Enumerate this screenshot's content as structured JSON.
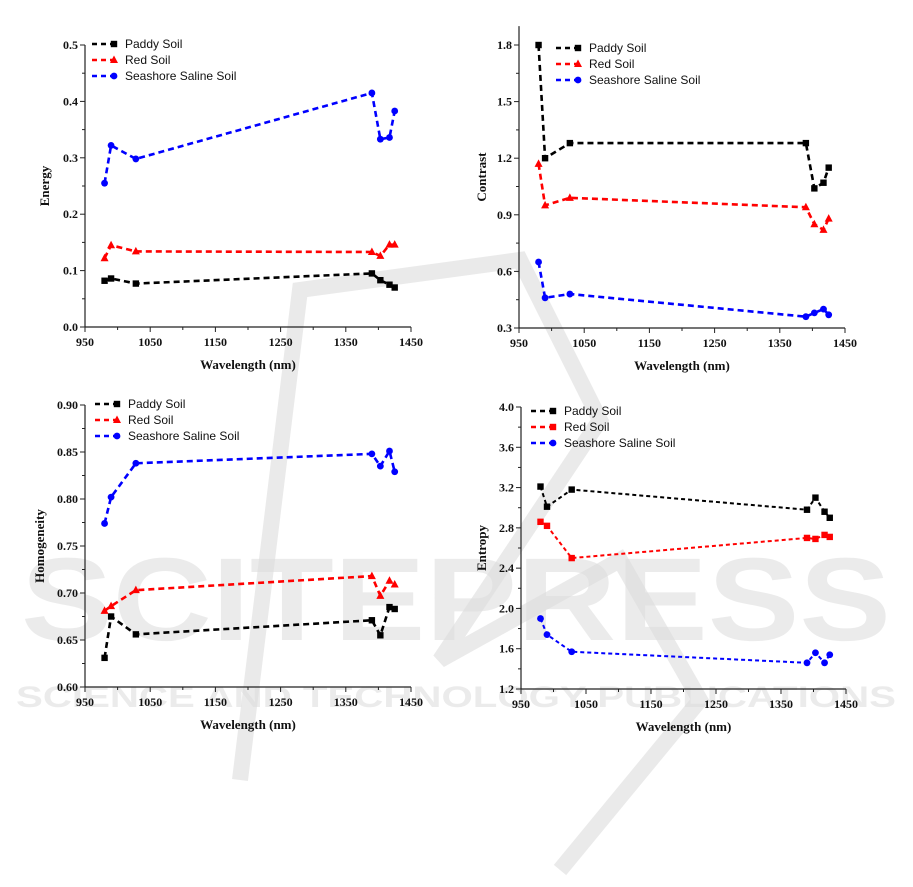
{
  "watermark": {
    "main": "SCITEPRESS",
    "sub": "SCIENCE AND TECHNOLOGY PUBLICATIONS",
    "color": "#d9d9d9"
  },
  "series_styles": {
    "Paddy Soil": {
      "color": "#000000"
    },
    "Red Soil": {
      "color": "#ff0000"
    },
    "Seashore Saline Soil": {
      "color": "#0000ff"
    }
  },
  "chart_data": [
    {
      "id": "energy",
      "type": "line",
      "title": "",
      "xlabel": "Wavelength (nm)",
      "ylabel": "Energy",
      "xlim": [
        950,
        1450
      ],
      "ylim": [
        0.0,
        0.5
      ],
      "xticks": [
        950,
        1050,
        1150,
        1250,
        1350,
        1450
      ],
      "yticks": [
        0.0,
        0.1,
        0.2,
        0.3,
        0.4,
        0.5
      ],
      "ytick_labels": [
        "0.0",
        "0.1",
        "0.2",
        "0.3",
        "0.4",
        "0.5"
      ],
      "grid": false,
      "legend": "top-left",
      "x": [
        980,
        990,
        1028,
        1390,
        1403,
        1417,
        1425
      ],
      "series": [
        {
          "name": "Paddy Soil",
          "marker": "square",
          "values": [
            0.082,
            0.086,
            0.077,
            0.095,
            0.083,
            0.075,
            0.07
          ]
        },
        {
          "name": "Red Soil",
          "marker": "triangle",
          "values": [
            0.122,
            0.145,
            0.134,
            0.133,
            0.126,
            0.146,
            0.146
          ]
        },
        {
          "name": "Seashore Saline Soil",
          "marker": "circle",
          "values": [
            0.255,
            0.322,
            0.298,
            0.415,
            0.333,
            0.336,
            0.383
          ]
        }
      ]
    },
    {
      "id": "contrast",
      "type": "line",
      "title": "",
      "xlabel": "Wavelength (nm)",
      "ylabel": "Contrast",
      "xlim": [
        950,
        1450
      ],
      "ylim": [
        0.3,
        1.9
      ],
      "xticks": [
        950,
        1050,
        1150,
        1250,
        1350,
        1450
      ],
      "yticks": [
        0.3,
        0.6,
        0.9,
        1.2,
        1.5,
        1.8
      ],
      "ytick_labels": [
        "0.3",
        "0.6",
        "0.9",
        "1.2",
        "1.5",
        "1.8"
      ],
      "grid": false,
      "legend": "top-left",
      "x": [
        980,
        990,
        1028,
        1390,
        1403,
        1417,
        1425
      ],
      "series": [
        {
          "name": "Paddy Soil",
          "marker": "square",
          "values": [
            1.8,
            1.2,
            1.28,
            1.28,
            1.04,
            1.07,
            1.15
          ]
        },
        {
          "name": "Red Soil",
          "marker": "triangle",
          "values": [
            1.17,
            0.95,
            0.99,
            0.94,
            0.85,
            0.82,
            0.88
          ]
        },
        {
          "name": "Seashore Saline Soil",
          "marker": "circle",
          "values": [
            0.65,
            0.46,
            0.48,
            0.36,
            0.38,
            0.4,
            0.37
          ]
        }
      ]
    },
    {
      "id": "homogeneity",
      "type": "line",
      "title": "",
      "xlabel": "Wavelength (nm)",
      "ylabel": "Homogeneity",
      "xlim": [
        950,
        1450
      ],
      "ylim": [
        0.6,
        0.9
      ],
      "xticks": [
        950,
        1050,
        1150,
        1250,
        1350,
        1450
      ],
      "yticks": [
        0.6,
        0.65,
        0.7,
        0.75,
        0.8,
        0.85,
        0.9
      ],
      "ytick_labels": [
        "0.60",
        "0.65",
        "0.70",
        "0.75",
        "0.80",
        "0.85",
        "0.90"
      ],
      "grid": false,
      "legend": "top-left",
      "x": [
        980,
        990,
        1028,
        1390,
        1403,
        1417,
        1425
      ],
      "series": [
        {
          "name": "Paddy Soil",
          "marker": "square",
          "values": [
            0.631,
            0.675,
            0.656,
            0.671,
            0.655,
            0.685,
            0.683
          ]
        },
        {
          "name": "Red Soil",
          "marker": "triangle",
          "values": [
            0.681,
            0.686,
            0.703,
            0.718,
            0.697,
            0.713,
            0.709
          ]
        },
        {
          "name": "Seashore Saline Soil",
          "marker": "circle",
          "values": [
            0.774,
            0.802,
            0.838,
            0.848,
            0.835,
            0.851,
            0.829
          ]
        }
      ]
    },
    {
      "id": "entropy",
      "type": "line",
      "title": "",
      "xlabel": "Wavelength (nm)",
      "ylabel": "Entropy",
      "xlim": [
        950,
        1450
      ],
      "ylim": [
        1.2,
        4.0
      ],
      "xticks": [
        950,
        1050,
        1150,
        1250,
        1350,
        1450
      ],
      "yticks": [
        1.2,
        1.6,
        2.0,
        2.4,
        2.8,
        3.2,
        3.6,
        4.0
      ],
      "ytick_labels": [
        "1.2",
        "1.6",
        "2.0",
        "2.4",
        "2.8",
        "3.2",
        "3.6",
        "4.0"
      ],
      "grid": false,
      "legend": "top-left",
      "x": [
        980,
        990,
        1028,
        1390,
        1403,
        1417,
        1425
      ],
      "series": [
        {
          "name": "Paddy Soil",
          "marker": "square",
          "values": [
            3.21,
            3.01,
            3.18,
            2.98,
            3.1,
            2.96,
            2.9
          ]
        },
        {
          "name": "Red Soil",
          "marker": "square",
          "values": [
            2.86,
            2.82,
            2.5,
            2.7,
            2.69,
            2.73,
            2.71
          ]
        },
        {
          "name": "Seashore Saline Soil",
          "marker": "circle",
          "values": [
            1.9,
            1.74,
            1.57,
            1.46,
            1.56,
            1.46,
            1.54
          ]
        }
      ]
    }
  ]
}
